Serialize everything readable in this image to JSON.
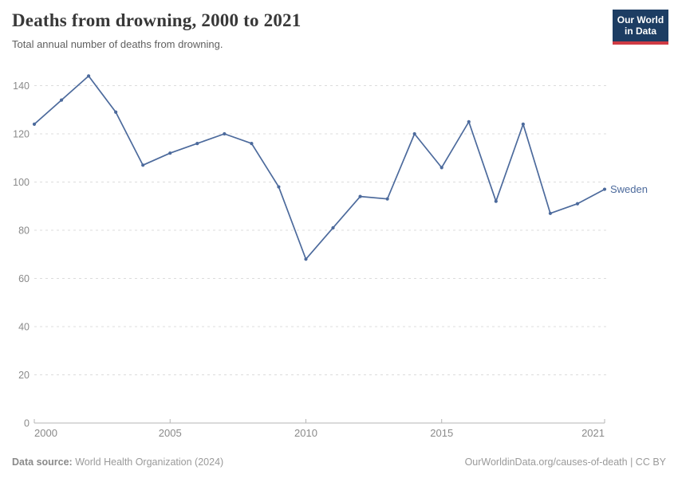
{
  "header": {
    "title": "Deaths from drowning, 2000 to 2021",
    "subtitle": "Total annual number of deaths from drowning."
  },
  "logo": {
    "line1": "Our World",
    "line2": "in Data",
    "bg_color": "#1d3d63",
    "accent_color": "#cf3b44"
  },
  "chart_data": {
    "type": "line",
    "title": "Deaths from drowning, 2000 to 2021",
    "xlabel": "",
    "ylabel": "",
    "x": [
      2000,
      2001,
      2002,
      2003,
      2004,
      2005,
      2006,
      2007,
      2008,
      2009,
      2010,
      2011,
      2012,
      2013,
      2014,
      2015,
      2016,
      2017,
      2018,
      2019,
      2020,
      2021
    ],
    "series": [
      {
        "name": "Sweden",
        "color": "#4c6a9c",
        "values": [
          124,
          134,
          144,
          129,
          107,
          112,
          116,
          120,
          116,
          98,
          68,
          81,
          94,
          93,
          120,
          106,
          125,
          92,
          124,
          87,
          91,
          97
        ]
      }
    ],
    "xlim": [
      2000,
      2021
    ],
    "ylim": [
      0,
      140
    ],
    "xticks": [
      2000,
      2005,
      2010,
      2015,
      2021
    ],
    "yticks": [
      0,
      20,
      40,
      60,
      80,
      100,
      120,
      140
    ],
    "grid": "horizontal-dashed",
    "grid_color": "#dcdcdc",
    "axis_color": "#b5b5b5",
    "tick_label_color": "#8a8a8a",
    "legend_position": "label-right-of-last-point"
  },
  "footer": {
    "source_label": "Data source:",
    "source_text": "World Health Organization (2024)",
    "rights_text": "OurWorldinData.org/causes-of-death | CC BY"
  }
}
